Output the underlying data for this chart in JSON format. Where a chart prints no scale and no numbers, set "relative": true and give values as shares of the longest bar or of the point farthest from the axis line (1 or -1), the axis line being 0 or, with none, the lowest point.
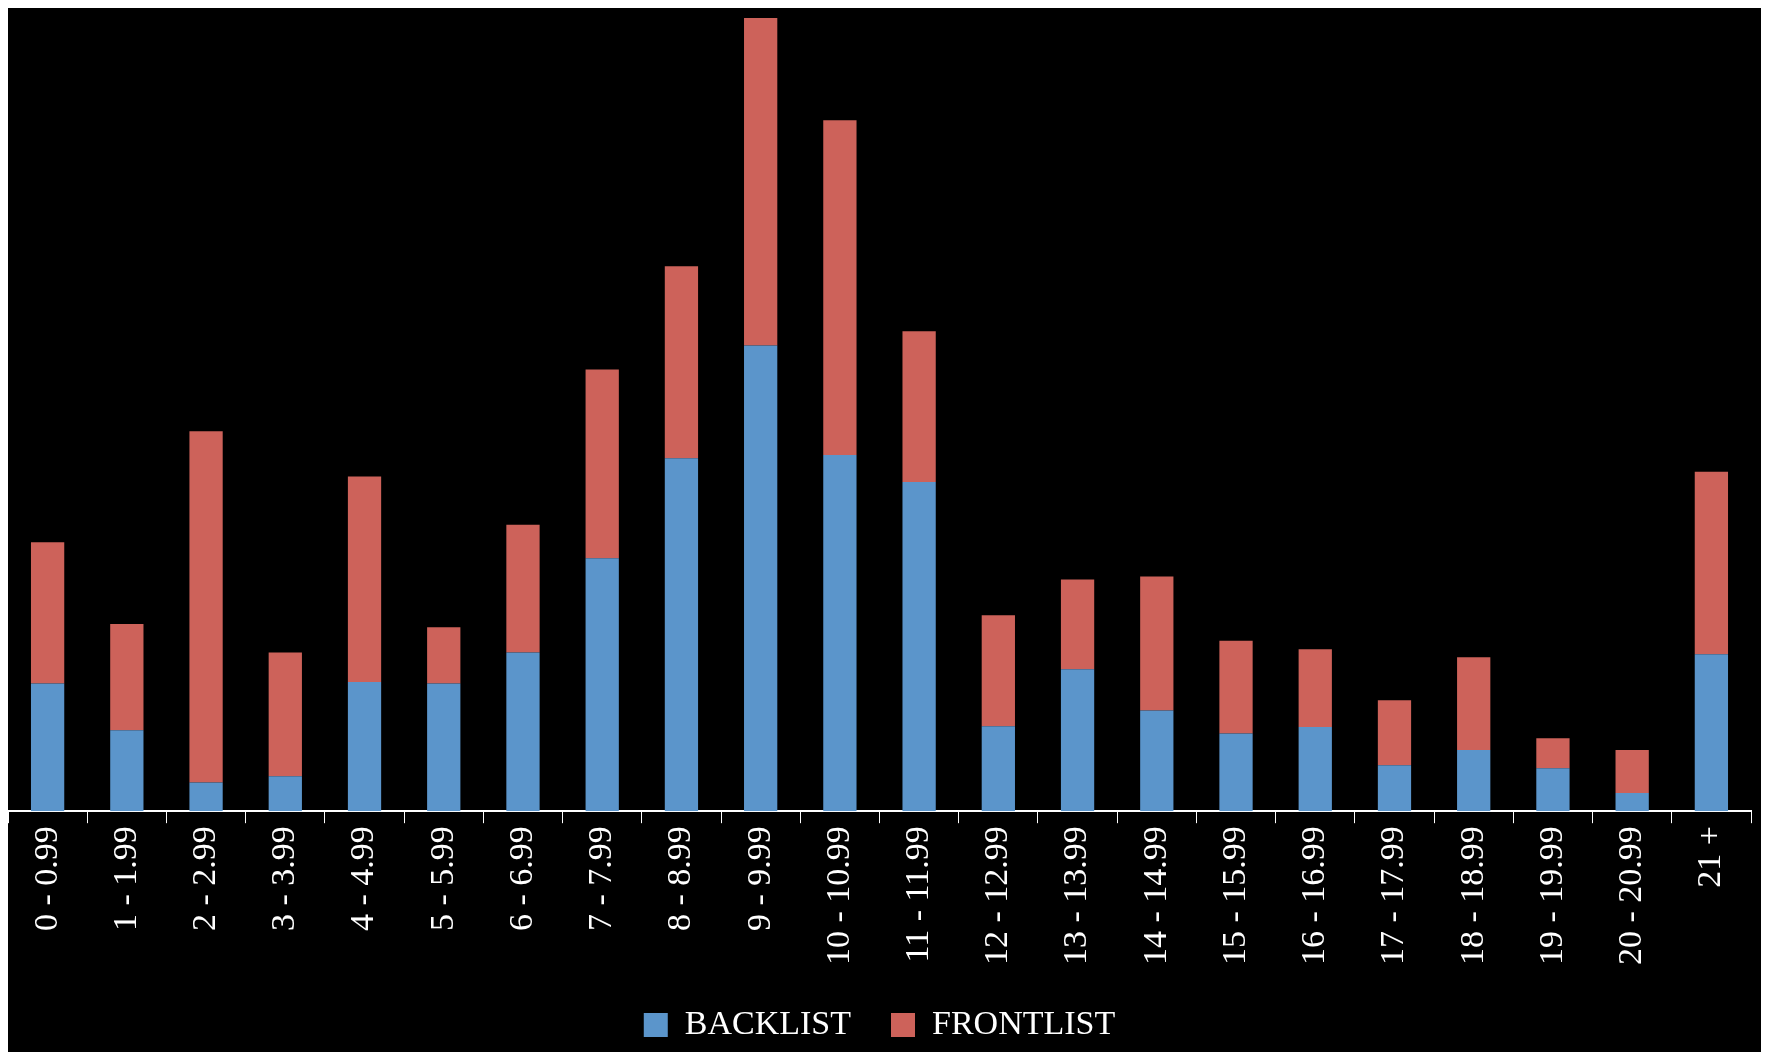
{
  "chart_data": {
    "type": "bar",
    "stacked": true,
    "relative": true,
    "grid": false,
    "legend": "bottom",
    "categories": [
      "0 - 0.99",
      "1 - 1.99",
      "2 - 2.99",
      "3 - 3.99",
      "4 - 4.99",
      "5 - 5.99",
      "6 - 6.99",
      "7 - 7.99",
      "8 - 8.99",
      "9 - 9.99",
      "10 - 10.99",
      "11 - 11.99",
      "12 - 12.99",
      "13 - 13.99",
      "14 - 14.99",
      "15 - 15.99",
      "16 - 16.99",
      "17 - 17.99",
      "18 - 18.99",
      "19 - 19.99",
      "20 - 20.99",
      "21 +"
    ],
    "series": [
      {
        "name": "BACKLIST",
        "color": "#5b95cb",
        "values": [
          0.161,
          0.102,
          0.036,
          0.044,
          0.163,
          0.161,
          0.2,
          0.319,
          0.445,
          0.587,
          0.449,
          0.415,
          0.107,
          0.179,
          0.127,
          0.098,
          0.106,
          0.058,
          0.077,
          0.054,
          0.023,
          0.198
        ]
      },
      {
        "name": "FRONTLIST",
        "color": "#cd625a",
        "values": [
          0.178,
          0.134,
          0.443,
          0.156,
          0.259,
          0.071,
          0.161,
          0.238,
          0.242,
          0.413,
          0.422,
          0.19,
          0.14,
          0.113,
          0.169,
          0.117,
          0.098,
          0.082,
          0.117,
          0.038,
          0.054,
          0.23
        ]
      }
    ]
  }
}
